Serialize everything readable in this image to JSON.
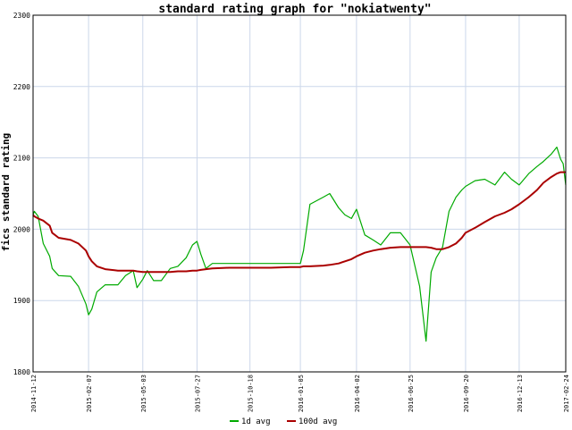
{
  "chart_data": {
    "type": "line",
    "title": "standard rating graph for \"nokiatwenty\"",
    "xlabel": "",
    "ylabel": "fics standard rating",
    "ylim": [
      1800,
      2300
    ],
    "yticks": [
      "1800",
      "1900",
      "2000",
      "2100",
      "2200",
      "2300"
    ],
    "grid": true,
    "legend_position": "bottom-center",
    "xticks": [
      "2014-11-12",
      "2015-02-07",
      "2015-05-03",
      "2015-07-27",
      "2015-10-18",
      "2016-01-05",
      "2016-04-02",
      "2016-06-25",
      "2016-09-20",
      "2016-12-13",
      "2017-02-24"
    ],
    "x": [
      "2014-11-12",
      "2014-11-14",
      "2014-11-20",
      "2014-11-28",
      "2014-12-08",
      "2014-12-12",
      "2014-12-22",
      "2015-01-10",
      "2015-01-22",
      "2015-02-03",
      "2015-02-07",
      "2015-02-12",
      "2015-02-20",
      "2015-03-05",
      "2015-03-25",
      "2015-04-06",
      "2015-04-18",
      "2015-04-24",
      "2015-05-03",
      "2015-05-10",
      "2015-05-20",
      "2015-06-01",
      "2015-06-15",
      "2015-06-27",
      "2015-07-10",
      "2015-07-20",
      "2015-07-27",
      "2015-08-02",
      "2015-08-10",
      "2015-08-20",
      "2015-09-15",
      "2015-10-18",
      "2015-11-20",
      "2015-12-20",
      "2016-01-05",
      "2016-01-10",
      "2016-01-20",
      "2016-02-10",
      "2016-02-20",
      "2016-03-05",
      "2016-03-15",
      "2016-03-25",
      "2016-04-02",
      "2016-04-15",
      "2016-04-28",
      "2016-05-10",
      "2016-05-25",
      "2016-06-10",
      "2016-06-25",
      "2016-07-10",
      "2016-07-20",
      "2016-07-28",
      "2016-08-05",
      "2016-08-15",
      "2016-08-25",
      "2016-09-05",
      "2016-09-14",
      "2016-09-20",
      "2016-10-05",
      "2016-10-20",
      "2016-11-05",
      "2016-11-20",
      "2016-12-01",
      "2016-12-13",
      "2016-12-28",
      "2017-01-10",
      "2017-01-20",
      "2017-02-01",
      "2017-02-10",
      "2017-02-16",
      "2017-02-20",
      "2017-02-24"
    ],
    "series": [
      {
        "name": "1d avg",
        "color": "#00aa00",
        "values": [
          2020,
          2025,
          2018,
          1980,
          1962,
          1945,
          1935,
          1934,
          1920,
          1895,
          1880,
          1888,
          1912,
          1922,
          1922,
          1935,
          1942,
          1918,
          1930,
          1942,
          1928,
          1928,
          1945,
          1948,
          1960,
          1978,
          1983,
          1965,
          1945,
          1952,
          1952,
          1952,
          1952,
          1952,
          1952,
          1970,
          2035,
          2045,
          2050,
          2030,
          2020,
          2015,
          2028,
          1992,
          1985,
          1978,
          1995,
          1995,
          1978,
          1920,
          1843,
          1940,
          1960,
          1975,
          2025,
          2045,
          2055,
          2060,
          2068,
          2070,
          2062,
          2080,
          2070,
          2062,
          2078,
          2088,
          2095,
          2105,
          2115,
          2098,
          2092,
          2062
        ]
      },
      {
        "name": "100d avg",
        "color": "#aa0000",
        "values": [
          2020,
          2018,
          2015,
          2012,
          2005,
          1995,
          1988,
          1985,
          1980,
          1970,
          1962,
          1955,
          1948,
          1944,
          1942,
          1942,
          1942,
          1941,
          1940,
          1940,
          1940,
          1940,
          1940,
          1941,
          1941,
          1942,
          1942,
          1943,
          1944,
          1945,
          1946,
          1946,
          1946,
          1947,
          1947,
          1948,
          1948,
          1949,
          1950,
          1952,
          1955,
          1958,
          1962,
          1967,
          1970,
          1972,
          1974,
          1975,
          1975,
          1975,
          1975,
          1974,
          1972,
          1972,
          1975,
          1980,
          1988,
          1995,
          2002,
          2010,
          2018,
          2023,
          2028,
          2035,
          2045,
          2055,
          2065,
          2073,
          2078,
          2080,
          2080,
          2080
        ]
      }
    ]
  }
}
